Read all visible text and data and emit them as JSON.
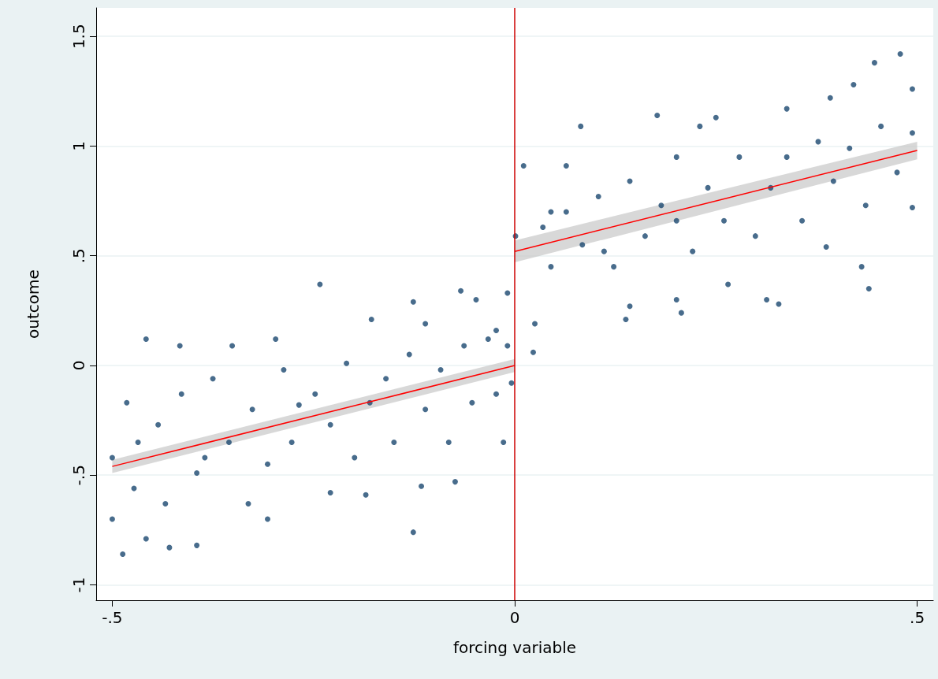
{
  "chart_data": {
    "type": "scatter",
    "xlabel": "forcing variable",
    "ylabel": "outcome",
    "xlim": [
      -0.52,
      0.52
    ],
    "xticks": [
      {
        "value": -0.5,
        "label": "-.5"
      },
      0,
      {
        "value": 0.5,
        "label": ".5"
      }
    ],
    "ylim": [
      -1.07,
      1.63
    ],
    "yticks": [
      -1,
      {
        "value": -0.5,
        "label": "-.5"
      },
      0,
      {
        "value": 0.5,
        "label": ".5"
      },
      1,
      1.5
    ],
    "grid": "y",
    "ref_lines": [
      {
        "axis": "x",
        "value": 0,
        "color": "#cc0000"
      }
    ],
    "series": [
      {
        "marker": "circle",
        "color": "#1a476f",
        "x": [
          -0.5,
          -0.5,
          -0.487,
          -0.482,
          -0.458,
          -0.458,
          -0.429,
          -0.416,
          -0.395,
          -0.385,
          -0.351,
          -0.331,
          -0.307,
          -0.297,
          -0.268,
          -0.242,
          -0.229,
          -0.185,
          -0.178,
          -0.126,
          -0.126,
          -0.111,
          -0.116,
          -0.074,
          -0.067,
          -0.048,
          -0.014,
          -0.004,
          -0.023,
          -0.009,
          -0.443,
          -0.414,
          -0.395,
          -0.375,
          -0.355,
          -0.326,
          -0.307,
          -0.287,
          -0.277,
          -0.248,
          -0.229,
          -0.209,
          -0.199,
          -0.18,
          -0.16,
          -0.15,
          -0.131,
          -0.111,
          -0.092,
          -0.082,
          -0.063,
          -0.053,
          -0.033,
          -0.023,
          -0.009,
          -0.473,
          -0.468,
          -0.434,
          0.001,
          0.011,
          0.023,
          0.025,
          0.064,
          0.082,
          0.111,
          0.138,
          0.143,
          0.177,
          0.201,
          0.207,
          0.23,
          0.25,
          0.265,
          0.313,
          0.328,
          0.338,
          0.392,
          0.421,
          0.44,
          0.447,
          0.479,
          0.494,
          0.494,
          0.431,
          0.387,
          0.035,
          0.045,
          0.064,
          0.084,
          0.104,
          0.123,
          0.143,
          0.162,
          0.182,
          0.201,
          0.221,
          0.24,
          0.26,
          0.279,
          0.299,
          0.318,
          0.338,
          0.357,
          0.377,
          0.396,
          0.416,
          0.436,
          0.455,
          0.475,
          0.494,
          0.045,
          0.201
        ],
        "values": [
          -0.42,
          -0.7,
          -0.86,
          -0.17,
          0.12,
          -0.79,
          -0.83,
          0.09,
          -0.82,
          -0.42,
          0.09,
          -0.63,
          -0.7,
          0.12,
          -0.18,
          0.37,
          -0.58,
          -0.59,
          0.21,
          0.29,
          -0.76,
          0.19,
          -0.55,
          -0.53,
          0.34,
          0.3,
          -0.35,
          -0.08,
          0.16,
          0.33,
          -0.27,
          -0.13,
          -0.49,
          -0.06,
          -0.35,
          -0.2,
          -0.45,
          -0.02,
          -0.35,
          -0.13,
          -0.27,
          0.01,
          -0.42,
          -0.17,
          -0.06,
          -0.35,
          0.05,
          -0.2,
          -0.02,
          -0.35,
          0.09,
          -0.17,
          0.12,
          -0.13,
          0.09,
          -0.56,
          -0.35,
          -0.63,
          0.59,
          0.91,
          0.06,
          0.19,
          0.91,
          1.09,
          0.52,
          0.21,
          0.27,
          1.14,
          0.3,
          0.24,
          1.09,
          1.13,
          0.37,
          0.3,
          0.28,
          1.17,
          1.22,
          1.28,
          0.35,
          1.38,
          1.42,
          1.26,
          0.72,
          0.45,
          0.54,
          0.63,
          0.45,
          0.7,
          0.55,
          0.77,
          0.45,
          0.84,
          0.59,
          0.73,
          0.95,
          0.52,
          0.81,
          0.66,
          0.95,
          0.59,
          0.81,
          0.95,
          0.66,
          1.02,
          0.84,
          0.99,
          0.73,
          1.09,
          0.88,
          1.06,
          0.7,
          0.66
        ]
      },
      {
        "type": "line",
        "marker": "none",
        "color": "#ff0000",
        "x": [
          -0.5,
          0
        ],
        "values": [
          -0.46,
          0
        ],
        "lower": [
          -0.49,
          -0.03
        ],
        "upper": [
          -0.43,
          0.03
        ]
      },
      {
        "type": "line",
        "marker": "none",
        "color": "#ff0000",
        "x": [
          0,
          0.5
        ],
        "values": [
          0.52,
          0.98
        ],
        "lower": [
          0.47,
          0.94
        ],
        "upper": [
          0.57,
          1.02
        ]
      }
    ]
  }
}
